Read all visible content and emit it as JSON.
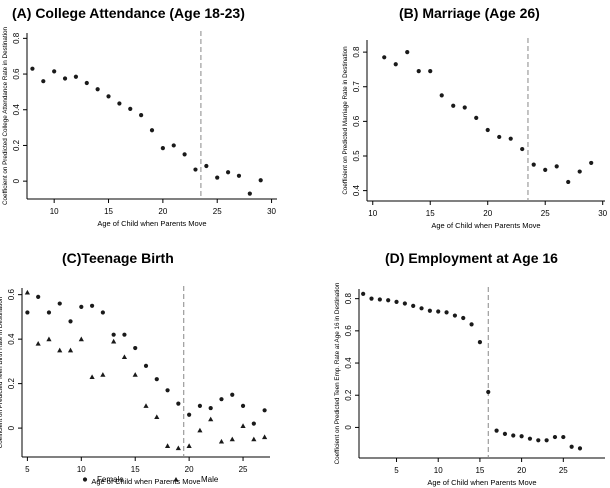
{
  "chart_data": [
    {
      "id": "A",
      "type": "scatter",
      "title": "(A)  College Attendance (Age 18-23)",
      "xlabel": "Age of Child when Parents Move",
      "ylabel": "Coefficient on Predicted College Attendance Rate in Destination",
      "xlim": [
        7.5,
        30.5
      ],
      "ylim": [
        -0.1,
        0.83
      ],
      "xticks": [
        10,
        15,
        20,
        25,
        30
      ],
      "yticks": [
        0,
        0.2,
        0.4,
        0.6,
        0.8
      ],
      "ytick_labels": [
        "0",
        "0.2",
        "0.4",
        "0.6",
        "0.8"
      ],
      "vline": 23.5,
      "grid": false,
      "series": [
        {
          "marker": "circle",
          "x": [
            8,
            9,
            10,
            11,
            12,
            13,
            14,
            15,
            16,
            17,
            18,
            19,
            20,
            21,
            22,
            23,
            24,
            25,
            26,
            27,
            28,
            29
          ],
          "y": [
            0.63,
            0.56,
            0.615,
            0.575,
            0.585,
            0.55,
            0.515,
            0.475,
            0.435,
            0.405,
            0.37,
            0.285,
            0.185,
            0.2,
            0.15,
            0.065,
            0.085,
            0.02,
            0.05,
            0.03,
            -0.07,
            0.005
          ]
        }
      ]
    },
    {
      "id": "B",
      "type": "scatter",
      "title": "(B)  Marriage (Age 26)",
      "xlabel": "Age of Child when Parents Move",
      "ylabel": "Coefficient on Predicted Marriage Rate in Destination",
      "xlim": [
        9.5,
        30.2
      ],
      "ylim": [
        0.37,
        0.835
      ],
      "xticks": [
        10,
        15,
        20,
        25,
        30
      ],
      "yticks": [
        0.4,
        0.5,
        0.6,
        0.7,
        0.8
      ],
      "ytick_labels": [
        "0.4",
        "0.5",
        "0.6",
        "0.7",
        "0.8"
      ],
      "vline": 23.5,
      "grid": false,
      "series": [
        {
          "marker": "circle",
          "x": [
            11,
            12,
            13,
            14,
            15,
            16,
            17,
            18,
            19,
            20,
            21,
            22,
            23,
            24,
            25,
            26,
            27,
            28,
            29
          ],
          "y": [
            0.785,
            0.765,
            0.8,
            0.745,
            0.745,
            0.675,
            0.645,
            0.64,
            0.61,
            0.575,
            0.555,
            0.55,
            0.52,
            0.475,
            0.46,
            0.47,
            0.425,
            0.455,
            0.48
          ]
        }
      ]
    },
    {
      "id": "C",
      "type": "scatter",
      "title": "(C)Teenage Birth",
      "xlabel": "Age of Child when Parents Move",
      "ylabel": "Coefficient on Predicted Teen Birth Rate in Destination",
      "xlim": [
        4.5,
        27.5
      ],
      "ylim": [
        -0.13,
        0.63
      ],
      "xticks": [
        5,
        10,
        15,
        20,
        25
      ],
      "yticks": [
        0,
        0.2,
        0.4,
        0.6
      ],
      "ytick_labels": [
        "0",
        "0.2",
        "0.4",
        "0.6"
      ],
      "vline": 19.5,
      "grid": false,
      "legend": "bottom",
      "series": [
        {
          "name": "Female",
          "marker": "circle",
          "x": [
            5,
            6,
            7,
            8,
            9,
            10,
            11,
            12,
            13,
            14,
            15,
            16,
            17,
            18,
            19,
            20,
            21,
            22,
            23,
            24,
            25,
            26,
            27
          ],
          "y": [
            0.52,
            0.59,
            0.52,
            0.56,
            0.48,
            0.545,
            0.55,
            0.52,
            0.42,
            0.42,
            0.36,
            0.28,
            0.22,
            0.17,
            0.11,
            0.06,
            0.1,
            0.09,
            0.13,
            0.15,
            0.1,
            0.02,
            0.08
          ]
        },
        {
          "name": "Male",
          "marker": "triangle",
          "x": [
            5,
            6,
            7,
            8,
            9,
            10,
            11,
            12,
            13,
            14,
            15,
            16,
            17,
            18,
            19,
            20,
            21,
            22,
            23,
            24,
            25,
            26,
            27
          ],
          "y": [
            0.61,
            0.38,
            0.4,
            0.35,
            0.35,
            0.4,
            0.23,
            0.24,
            0.39,
            0.32,
            0.24,
            0.1,
            0.05,
            -0.08,
            -0.09,
            -0.08,
            -0.01,
            0.04,
            -0.06,
            -0.05,
            0.01,
            -0.05,
            -0.04
          ]
        }
      ]
    },
    {
      "id": "D",
      "type": "scatter",
      "title": "(D)  Employment at Age 16",
      "xlabel": "Age of Child when Parents Move",
      "ylabel": "Coefficient on Predicted Teen Emp. Rate at Age 16 in Destination",
      "xlim": [
        0.5,
        30
      ],
      "ylim": [
        -0.19,
        0.86
      ],
      "xticks": [
        5,
        10,
        15,
        20,
        25
      ],
      "yticks": [
        0,
        0.2,
        0.4,
        0.6,
        0.8
      ],
      "ytick_labels": [
        "0",
        "0.2",
        "0.4",
        "0.6",
        "0.8"
      ],
      "vline": 16,
      "grid": false,
      "series": [
        {
          "marker": "circle",
          "x": [
            1,
            2,
            3,
            4,
            5,
            6,
            7,
            8,
            9,
            10,
            11,
            12,
            13,
            14,
            15,
            16,
            17,
            18,
            19,
            20,
            21,
            22,
            23,
            24,
            25,
            26,
            27,
            28
          ],
          "y": [
            0.83,
            0.8,
            0.795,
            0.79,
            0.78,
            0.77,
            0.755,
            0.74,
            0.725,
            0.72,
            0.715,
            0.695,
            0.68,
            0.64,
            0.53,
            0.22,
            -0.02,
            -0.04,
            -0.05,
            -0.055,
            -0.07,
            -0.08,
            -0.08,
            -0.06,
            -0.06,
            -0.12,
            -0.13,
            null
          ]
        }
      ]
    }
  ],
  "legend": {
    "female_label": "Female",
    "male_label": "Male"
  }
}
